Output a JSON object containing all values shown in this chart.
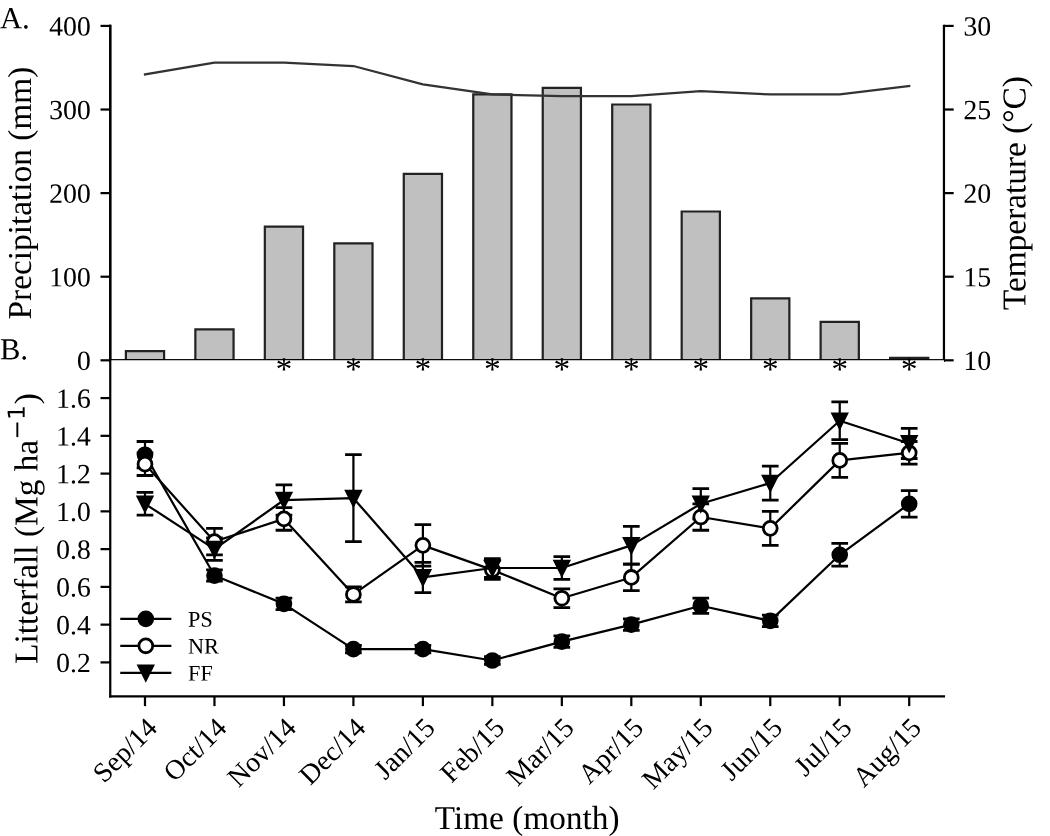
{
  "chart_data": [
    {
      "type": "bar",
      "categories": [
        null,
        null,
        null,
        null,
        null,
        null,
        null,
        null,
        null,
        null,
        null,
        null
      ],
      "ylabel": "Precipitation (mm)",
      "y2label": "Temperature (°C)",
      "annotations": [
        "A."
      ],
      "ylim": [
        0,
        400
      ],
      "yticks": [
        0,
        100,
        200,
        300,
        400
      ],
      "y2lim": [
        10,
        30
      ],
      "y2ticks": [
        10,
        15,
        20,
        25,
        30
      ],
      "tick_labels": "y",
      "grid": false,
      "legend": false,
      "series": [
        {
          "type": "bar",
          "color": "#c0c0c0",
          "values": [
            11,
            37,
            160,
            140,
            223,
            318,
            326,
            306,
            178,
            74,
            46,
            3
          ]
        },
        {
          "type": "line",
          "axis": "y2",
          "color": "#333333",
          "line_style": "solid",
          "marker": "none",
          "values": [
            27.1,
            27.8,
            27.8,
            27.6,
            26.5,
            25.9,
            25.8,
            25.8,
            26.1,
            25.9,
            25.9,
            26.4
          ]
        }
      ]
    },
    {
      "type": "line",
      "categories": [
        "Sep/14",
        "Oct/14",
        "Nov/14",
        "Dec/14",
        "Jan/15",
        "Feb/15",
        "Mar/15",
        "Apr/15",
        "May/15",
        "Jun/15",
        "Jul/15",
        "Aug/15"
      ],
      "xlabel": "Time (month)",
      "ylabel": "Litterfall (Mg ha$^{−1}$)",
      "annotations": [
        "B.",
        "*",
        "*",
        "*",
        "*",
        "*",
        "*",
        "*",
        "*",
        "*",
        "*"
      ],
      "ylim": [
        0.02,
        1.8
      ],
      "yticks": [
        0.2,
        0.4,
        0.6,
        0.8,
        {
          "value": 1,
          "label": "1.0"
        },
        1.2,
        1.4,
        1.6
      ],
      "grid": false,
      "legend": "bottom left",
      "line_style": "solid",
      "series": [
        {
          "name": "PS",
          "color": "#000000",
          "marker": "circle",
          "values": [
            1.3,
            0.66,
            0.51,
            0.27,
            0.27,
            0.21,
            0.31,
            0.4,
            0.5,
            0.42,
            0.77,
            1.04
          ],
          "errors": [
            0.07,
            0.03,
            0.03,
            0.02,
            0.02,
            0.02,
            0.03,
            0.03,
            0.04,
            0.03,
            0.06,
            0.07
          ]
        },
        {
          "name": "NR",
          "color": "#000000",
          "marker": "circle_open",
          "values": [
            1.25,
            0.84,
            0.96,
            0.56,
            0.82,
            0.69,
            0.54,
            0.65,
            0.97,
            0.91,
            1.27,
            1.31
          ],
          "errors": [
            0.06,
            0.07,
            0.06,
            0.04,
            0.11,
            0.05,
            0.05,
            0.07,
            0.07,
            0.09,
            0.09,
            0.06
          ]
        },
        {
          "name": "FF",
          "color": "#000000",
          "marker": "triangle",
          "values": [
            1.04,
            0.8,
            1.06,
            1.07,
            0.65,
            0.7,
            0.7,
            0.82,
            1.04,
            1.15,
            1.48,
            1.36
          ],
          "errors": [
            0.06,
            0.06,
            0.08,
            0.23,
            0.08,
            0.05,
            0.06,
            0.1,
            0.08,
            0.09,
            0.1,
            0.08
          ]
        }
      ]
    }
  ]
}
